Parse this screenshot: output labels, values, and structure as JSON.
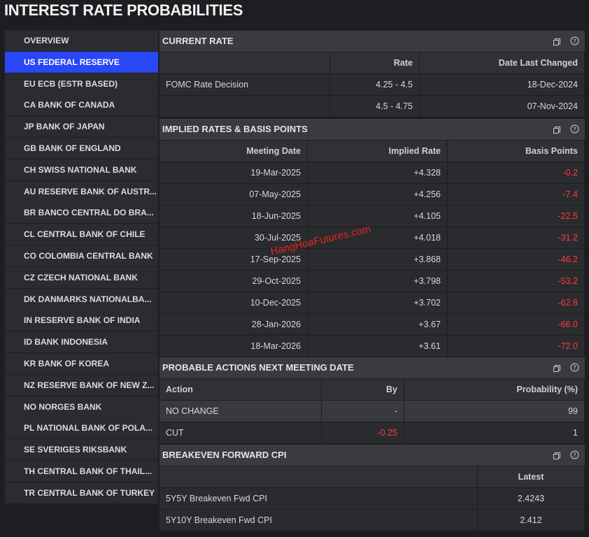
{
  "title": "INTEREST RATE PROBABILITIES",
  "sidebar": {
    "selected_index": 1,
    "items": [
      "OVERVIEW",
      "US FEDERAL RESERVE",
      "EU ECB (ESTR BASED)",
      "CA BANK OF CANADA",
      "JP BANK OF JAPAN",
      "GB BANK OF ENGLAND",
      "CH SWISS NATIONAL BANK",
      "AU RESERVE BANK OF AUSTR...",
      "BR BANCO CENTRAL DO BRA...",
      "CL CENTRAL BANK OF CHILE",
      "CO COLOMBIA CENTRAL BANK",
      "CZ CZECH NATIONAL BANK",
      "DK DANMARKS NATIONALBA...",
      "IN RESERVE BANK OF INDIA",
      "ID BANK INDONESIA",
      "KR BANK OF KOREA",
      "NZ RESERVE BANK OF NEW Z...",
      "NO NORGES BANK",
      "PL NATIONAL BANK OF POLA...",
      "SE SVERIGES RIKSBANK",
      "TH CENTRAL BANK OF THAIL...",
      "TR CENTRAL BANK OF TURKEY"
    ]
  },
  "sections": [
    {
      "title": "CURRENT RATE",
      "columns": [
        null,
        "Rate",
        "Date Last Changed"
      ],
      "rows": [
        [
          "FOMC Rate Decision",
          "4.25 - 4.5",
          "18-Dec-2024"
        ],
        [
          null,
          "4.5 - 4.75",
          "07-Nov-2024"
        ]
      ]
    },
    {
      "title": "IMPLIED RATES & BASIS POINTS",
      "columns": [
        "Meeting Date",
        "Implied Rate",
        "Basis Points"
      ],
      "rows": [
        [
          "19-Mar-2025",
          "+4.328",
          "-0.2"
        ],
        [
          "07-May-2025",
          "+4.256",
          "-7.4"
        ],
        [
          "18-Jun-2025",
          "+4.105",
          "-22.5"
        ],
        [
          "30-Jul-2025",
          "+4.018",
          "-31.2"
        ],
        [
          "17-Sep-2025",
          "+3.868",
          "-46.2"
        ],
        [
          "29-Oct-2025",
          "+3.798",
          "-53.2"
        ],
        [
          "10-Dec-2025",
          "+3.702",
          "-62.8"
        ],
        [
          "28-Jan-2026",
          "+3.67",
          "-66.0"
        ],
        [
          "18-Mar-2026",
          "+3.61",
          "-72.0"
        ]
      ]
    },
    {
      "title": "PROBABLE ACTIONS NEXT MEETING DATE",
      "columns": [
        "Action",
        "By",
        "Probability (%)"
      ],
      "rows": [
        [
          "NO CHANGE",
          "-",
          "99"
        ],
        [
          "CUT",
          "-0.25",
          "1"
        ]
      ]
    },
    {
      "title": "BREAKEVEN FORWARD CPI",
      "columns": [
        null,
        "Latest"
      ],
      "rows": [
        [
          "5Y5Y Breakeven Fwd CPI",
          "2.4243"
        ],
        [
          "5Y10Y Breakeven Fwd CPI",
          "2.412"
        ]
      ]
    }
  ],
  "watermark": "HangHoaFutures.com"
}
